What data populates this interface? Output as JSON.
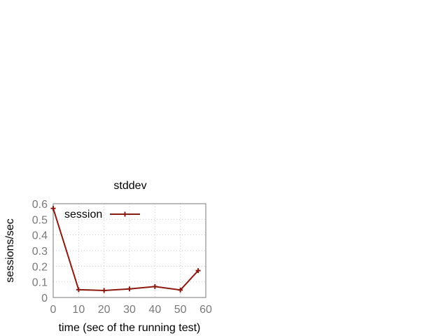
{
  "chart_data": {
    "type": "line",
    "title": "stddev",
    "xlabel": "time (sec of the running test)",
    "ylabel": "sessions/sec",
    "xlim": [
      0,
      60
    ],
    "ylim": [
      0,
      0.6
    ],
    "xticks": [
      "0",
      "10",
      "20",
      "30",
      "40",
      "50",
      "60"
    ],
    "yticks": [
      "0",
      "0.1",
      "0.2",
      "0.3",
      "0.4",
      "0.5",
      "0.6"
    ],
    "grid": true,
    "legend_position": "top-left",
    "series": [
      {
        "name": "session",
        "color": "#8b1a10",
        "marker": "plus",
        "x": [
          0,
          10,
          20,
          30,
          40,
          50,
          57
        ],
        "y": [
          0.57,
          0.05,
          0.045,
          0.055,
          0.07,
          0.048,
          0.172
        ]
      }
    ]
  }
}
